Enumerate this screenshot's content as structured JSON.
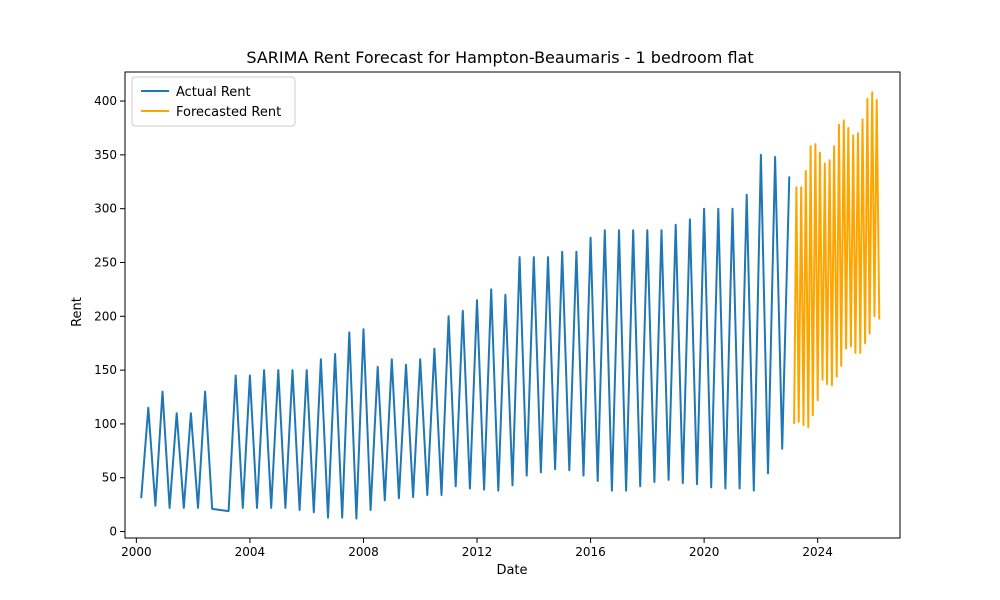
{
  "chart_data": {
    "type": "line",
    "title": "SARIMA Rent Forecast for Hampton-Beaumaris - 1 bedroom flat",
    "xlabel": "Date",
    "ylabel": "Rent",
    "xlim": [
      1999.6,
      2026.9
    ],
    "ylim": [
      -6,
      427
    ],
    "x_ticks": [
      2000,
      2004,
      2008,
      2012,
      2016,
      2020,
      2024
    ],
    "x_tick_labels": [
      "2000",
      "2004",
      "2008",
      "2012",
      "2016",
      "2020",
      "2024"
    ],
    "y_ticks": [
      0,
      50,
      100,
      150,
      200,
      250,
      300,
      350,
      400
    ],
    "y_tick_labels": [
      "0",
      "50",
      "100",
      "150",
      "200",
      "250",
      "300",
      "350",
      "400"
    ],
    "grid": false,
    "legend_position": "top-left",
    "series": [
      {
        "name": "Actual Rent",
        "color": "#1f77b4",
        "x": [
          2000.17,
          2000.42,
          2000.67,
          2000.92,
          2001.17,
          2001.42,
          2001.67,
          2001.92,
          2002.17,
          2002.42,
          2002.67,
          2003.25,
          2003.5,
          2003.75,
          2004.0,
          2004.25,
          2004.5,
          2004.75,
          2005.0,
          2005.25,
          2005.5,
          2005.75,
          2006.0,
          2006.25,
          2006.5,
          2006.75,
          2007.0,
          2007.25,
          2007.5,
          2007.75,
          2008.0,
          2008.25,
          2008.5,
          2008.75,
          2009.0,
          2009.25,
          2009.5,
          2009.75,
          2010.0,
          2010.25,
          2010.5,
          2010.75,
          2011.0,
          2011.25,
          2011.5,
          2011.75,
          2012.0,
          2012.25,
          2012.5,
          2012.75,
          2013.0,
          2013.25,
          2013.5,
          2013.75,
          2014.0,
          2014.25,
          2014.5,
          2014.75,
          2015.0,
          2015.25,
          2015.5,
          2015.75,
          2016.0,
          2016.25,
          2016.5,
          2016.75,
          2017.0,
          2017.25,
          2017.5,
          2017.75,
          2018.0,
          2018.25,
          2018.5,
          2018.75,
          2019.0,
          2019.25,
          2019.5,
          2019.75,
          2020.0,
          2020.25,
          2020.5,
          2020.75,
          2021.0,
          2021.25,
          2021.5,
          2021.75,
          2022.0,
          2022.25,
          2022.5,
          2022.75,
          2023.0
        ],
        "values": [
          31,
          115,
          24,
          130,
          22,
          110,
          22,
          110,
          22,
          130,
          21,
          19,
          145,
          22,
          145,
          22,
          150,
          22,
          150,
          22,
          150,
          20,
          150,
          18,
          160,
          13,
          165,
          13,
          185,
          12,
          188,
          20,
          153,
          29,
          160,
          31,
          155,
          32,
          160,
          34,
          170,
          34,
          200,
          42,
          205,
          40,
          215,
          39,
          225,
          38,
          220,
          43,
          255,
          52,
          255,
          55,
          255,
          58,
          260,
          57,
          260,
          52,
          273,
          47,
          280,
          38,
          280,
          38,
          280,
          42,
          280,
          46,
          280,
          48,
          285,
          45,
          290,
          44,
          300,
          41,
          300,
          40,
          300,
          40,
          313,
          38,
          350,
          54,
          348,
          77,
          330
        ]
      },
      {
        "name": "Forecasted Rent",
        "color": "#ffa500",
        "x": [
          2023.17,
          2023.25,
          2023.33,
          2023.42,
          2023.5,
          2023.58,
          2023.67,
          2023.75,
          2023.83,
          2023.92,
          2024.0,
          2024.08,
          2024.17,
          2024.25,
          2024.33,
          2024.42,
          2024.5,
          2024.58,
          2024.67,
          2024.75,
          2024.83,
          2024.92,
          2025.0,
          2025.08,
          2025.17,
          2025.25,
          2025.33,
          2025.42,
          2025.5,
          2025.58,
          2025.67,
          2025.75,
          2025.83,
          2025.92,
          2026.0,
          2026.08,
          2026.17
        ],
        "values": [
          100,
          320,
          102,
          320,
          99,
          335,
          97,
          358,
          108,
          360,
          122,
          352,
          141,
          342,
          137,
          345,
          136,
          358,
          144,
          378,
          154,
          382,
          170,
          375,
          172,
          368,
          166,
          370,
          166,
          383,
          175,
          402,
          184,
          408,
          200,
          401,
          197
        ]
      }
    ]
  }
}
